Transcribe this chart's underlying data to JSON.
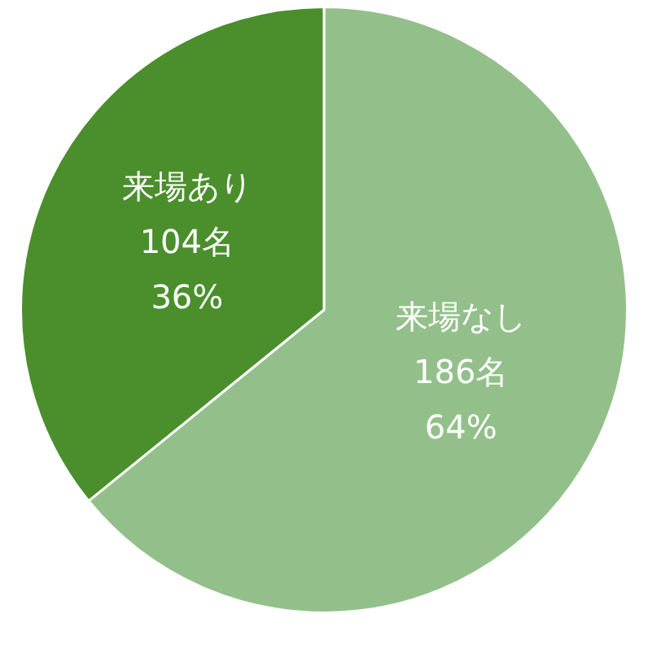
{
  "chart_data": {
    "type": "pie",
    "categories": [
      "来場なし",
      "来場あり"
    ],
    "values": [
      186,
      104
    ],
    "value_labels": [
      "186名\n64%",
      "104名\n36%"
    ],
    "colors": [
      "#93c08a",
      "#4a8f2c"
    ]
  }
}
